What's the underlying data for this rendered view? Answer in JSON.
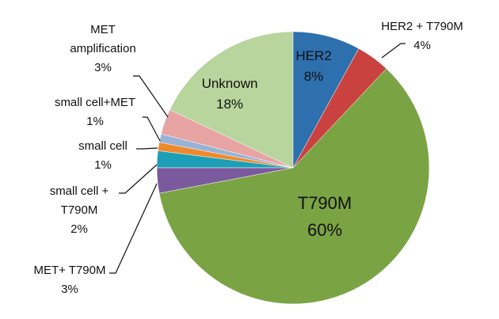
{
  "chart_data": {
    "type": "pie",
    "categories": [
      "HER2",
      "HER2 + T790M",
      "T790M",
      "MET+ T790M",
      "small cell + T790M",
      "small cell",
      "small cell+MET",
      "MET amplification",
      "Unknown"
    ],
    "values": [
      8,
      4,
      60,
      3,
      2,
      1,
      1,
      3,
      18
    ],
    "value_labels": [
      "8%",
      "4%",
      "60%",
      "3%",
      "2%",
      "1%",
      "1%",
      "3%",
      "18%"
    ],
    "colors": [
      "#2e6fae",
      "#c9423f",
      "#7aa444",
      "#7a5a9c",
      "#1c9fb6",
      "#ef8a2c",
      "#98b2d8",
      "#e8a3a3",
      "#b7d59d"
    ]
  }
}
